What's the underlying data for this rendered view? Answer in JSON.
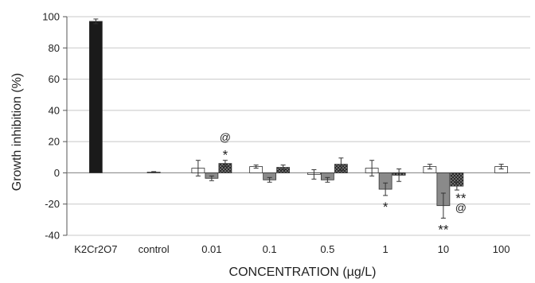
{
  "chart_data": {
    "type": "bar",
    "title": "",
    "xlabel": "CONCENTRATION    (µg/L)",
    "ylabel": "Growth   inhibition   (%)",
    "ylim": [
      -40,
      100
    ],
    "yticks": [
      -40,
      -20,
      0,
      20,
      40,
      60,
      80,
      100
    ],
    "grid": true,
    "legend": "none",
    "categories": [
      "K2Cr2O7",
      "control",
      "0.01",
      "0.1",
      "0.5",
      "1",
      "10",
      "100"
    ],
    "series": [
      {
        "fill": "#ffffff",
        "pattern": "none",
        "values": [
          97,
          0.5,
          3,
          4,
          -1,
          3,
          4,
          null
        ],
        "errors": [
          1.5,
          0.3,
          5,
          1,
          3,
          5,
          1.5,
          null
        ]
      },
      {
        "fill": "#8a8a8a",
        "pattern": "none",
        "values": [
          null,
          null,
          -3.5,
          -4.5,
          -4.5,
          -10.5,
          -21,
          null
        ],
        "errors": [
          null,
          null,
          1.5,
          1.5,
          1.5,
          4,
          8,
          null
        ]
      },
      {
        "fill": "#2a2a2a",
        "pattern": "dots",
        "values": [
          null,
          null,
          6,
          3.5,
          5.5,
          -1.5,
          -8.5,
          null
        ],
        "errors": [
          null,
          null,
          2,
          1.5,
          4,
          4,
          2.5,
          null
        ]
      }
    ],
    "single_bars": {
      "K2Cr2O7": {
        "value": 97,
        "error": 1.5,
        "fill": "#1a1a1a"
      },
      "control": {
        "value": 0.5,
        "error": 0.3,
        "fill": "#ffffff"
      },
      "100": {
        "value": 4,
        "error": 1.5,
        "fill": "#ffffff"
      }
    },
    "annotations": [
      {
        "category": "0.01",
        "series": 2,
        "labels": [
          "*",
          "@"
        ],
        "position": "above"
      },
      {
        "category": "1",
        "series": 1,
        "labels": [
          "*"
        ],
        "position": "below"
      },
      {
        "category": "10",
        "series": 1,
        "labels": [
          "**"
        ],
        "position": "below"
      },
      {
        "category": "10",
        "series": 2,
        "labels": [
          "**",
          "@"
        ],
        "position": "below"
      }
    ]
  }
}
